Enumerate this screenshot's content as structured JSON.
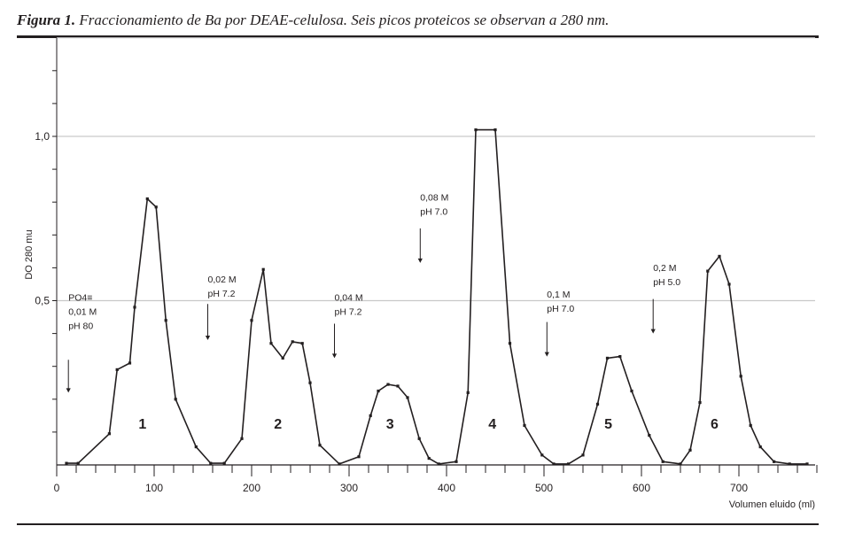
{
  "caption": {
    "lead": "Figura 1.",
    "text": " Fraccionamiento de Ba por DEAE-celulosa. Seis picos proteicos se observan a 280 nm."
  },
  "chart_data": {
    "type": "line",
    "xlabel": "Volumen eluido (ml)",
    "ylabel": "DO 280 mu",
    "xlim": [
      0,
      780
    ],
    "ylim": [
      0,
      1.3
    ],
    "xticks": [
      0,
      100,
      200,
      300,
      400,
      500,
      600,
      700
    ],
    "yticks": [
      0.5,
      1.0
    ],
    "ytick_labels": [
      "0,5",
      "1,0"
    ],
    "grid": "horizontal",
    "series": [
      {
        "points": [
          [
            10,
            0.005
          ],
          [
            22,
            0.005
          ],
          [
            54,
            0.095
          ],
          [
            62,
            0.29
          ],
          [
            75,
            0.31
          ],
          [
            80,
            0.48
          ],
          [
            93,
            0.81
          ],
          [
            102,
            0.785
          ],
          [
            112,
            0.44
          ],
          [
            122,
            0.2
          ],
          [
            143,
            0.055
          ],
          [
            158,
            0.005
          ],
          [
            172,
            0.005
          ],
          [
            190,
            0.08
          ],
          [
            200,
            0.44
          ],
          [
            212,
            0.595
          ],
          [
            220,
            0.37
          ],
          [
            232,
            0.325
          ],
          [
            242,
            0.375
          ],
          [
            252,
            0.37
          ],
          [
            260,
            0.25
          ],
          [
            270,
            0.06
          ],
          [
            290,
            0.003
          ],
          [
            310,
            0.025
          ],
          [
            322,
            0.15
          ],
          [
            330,
            0.225
          ],
          [
            340,
            0.245
          ],
          [
            350,
            0.24
          ],
          [
            360,
            0.205
          ],
          [
            372,
            0.08
          ],
          [
            382,
            0.02
          ],
          [
            392,
            0.003
          ],
          [
            410,
            0.01
          ],
          [
            422,
            0.22
          ],
          [
            430,
            1.02
          ],
          [
            450,
            1.02
          ],
          [
            465,
            0.37
          ],
          [
            480,
            0.12
          ],
          [
            498,
            0.03
          ],
          [
            510,
            0.003
          ],
          [
            525,
            0.003
          ],
          [
            540,
            0.03
          ],
          [
            555,
            0.185
          ],
          [
            565,
            0.325
          ],
          [
            578,
            0.33
          ],
          [
            590,
            0.225
          ],
          [
            608,
            0.09
          ],
          [
            622,
            0.01
          ],
          [
            640,
            0.003
          ],
          [
            650,
            0.045
          ],
          [
            660,
            0.19
          ],
          [
            668,
            0.59
          ],
          [
            680,
            0.635
          ],
          [
            690,
            0.55
          ],
          [
            702,
            0.27
          ],
          [
            712,
            0.12
          ],
          [
            722,
            0.055
          ],
          [
            736,
            0.01
          ],
          [
            752,
            0.003
          ],
          [
            770,
            0.003
          ]
        ]
      }
    ],
    "peak_labels": [
      {
        "label": "1",
        "x": 88,
        "y": 0.11
      },
      {
        "label": "2",
        "x": 227,
        "y": 0.11
      },
      {
        "label": "3",
        "x": 342,
        "y": 0.11
      },
      {
        "label": "4",
        "x": 447,
        "y": 0.11
      },
      {
        "label": "5",
        "x": 566,
        "y": 0.11
      },
      {
        "label": "6",
        "x": 675,
        "y": 0.11
      }
    ],
    "annotations": [
      {
        "lines": [
          "PO4≡",
          "0,01 M",
          "pH 80"
        ],
        "x": 12,
        "y": 0.5,
        "arrow_x": 12,
        "arrow_top": 0.32,
        "arrow_bottom": 0.22
      },
      {
        "lines": [
          "0,02 M",
          "pH 7.2"
        ],
        "x": 155,
        "y": 0.555,
        "arrow_x": 155,
        "arrow_top": 0.49,
        "arrow_bottom": 0.38
      },
      {
        "lines": [
          "0,04 M",
          "pH 7.2"
        ],
        "x": 285,
        "y": 0.5,
        "arrow_x": 285,
        "arrow_top": 0.43,
        "arrow_bottom": 0.325
      },
      {
        "lines": [
          "0,08 M",
          "pH 7.0"
        ],
        "x": 373,
        "y": 0.805,
        "arrow_x": 373,
        "arrow_top": 0.72,
        "arrow_bottom": 0.615
      },
      {
        "lines": [
          "0,1 M",
          "pH 7.0"
        ],
        "x": 503,
        "y": 0.51,
        "arrow_x": 503,
        "arrow_top": 0.435,
        "arrow_bottom": 0.33
      },
      {
        "lines": [
          "0,2 M",
          "pH 5.0"
        ],
        "x": 612,
        "y": 0.59,
        "arrow_x": 612,
        "arrow_top": 0.505,
        "arrow_bottom": 0.4
      }
    ]
  }
}
